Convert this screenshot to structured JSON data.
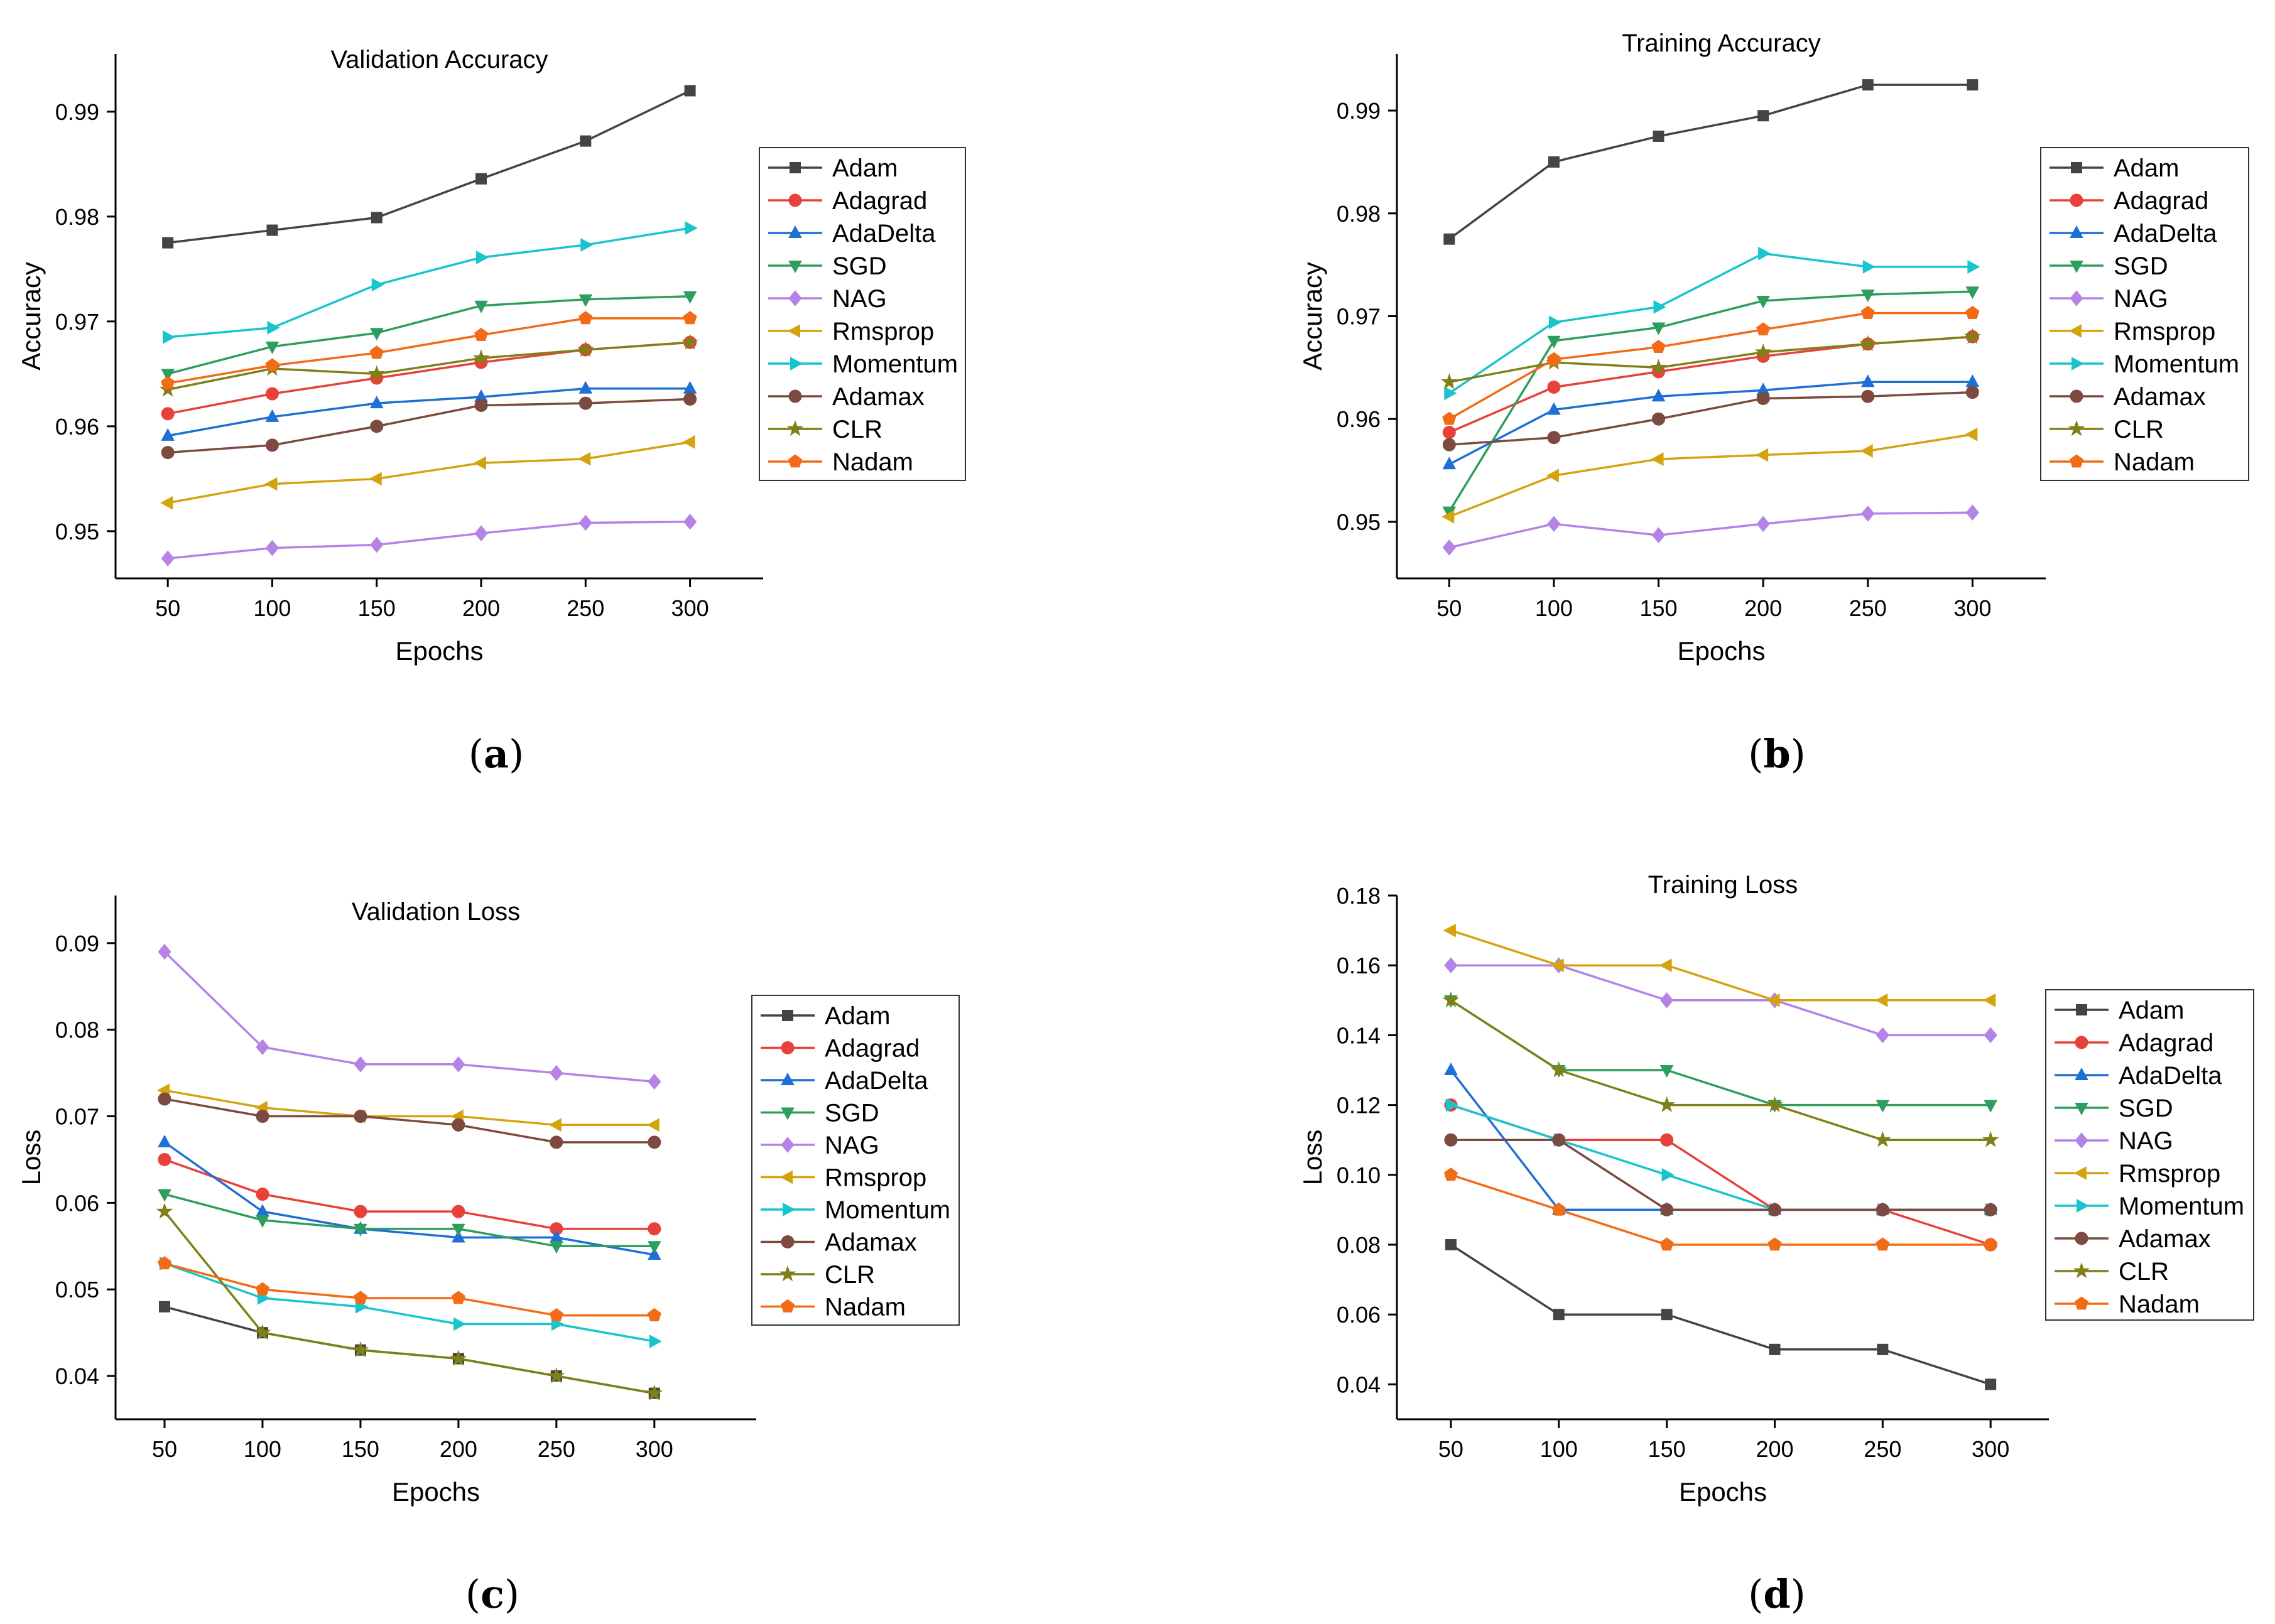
{
  "chart_data": [
    {
      "type": "line",
      "panel_label": "a",
      "title": "Validation Accuracy",
      "xlabel": "Epochs",
      "ylabel": "Accuracy",
      "x": [
        50,
        100,
        150,
        200,
        250,
        300
      ],
      "xticks": [
        "50",
        "100",
        "150",
        "200",
        "250",
        "300"
      ],
      "yticks": [
        "0.95",
        "0.96",
        "0.97",
        "0.98",
        "0.99"
      ],
      "ytick_values": [
        0.95,
        0.96,
        0.97,
        0.98,
        0.99
      ],
      "xlim": [
        25,
        335
      ],
      "ylim": [
        0.9455,
        0.9955
      ],
      "legend_position": "right",
      "series": [
        {
          "name": "Adam",
          "color": "#444444",
          "marker": "square",
          "values": [
            0.9775,
            0.9787,
            0.9799,
            0.9836,
            0.9872,
            0.992
          ]
        },
        {
          "name": "Adagrad",
          "color": "#e8413a",
          "marker": "circle",
          "values": [
            0.9612,
            0.9631,
            0.9646,
            0.9661,
            0.9673,
            0.968
          ]
        },
        {
          "name": "AdaDelta",
          "color": "#1e6fd6",
          "marker": "triangle-up",
          "values": [
            0.9591,
            0.9609,
            0.9622,
            0.9628,
            0.9636,
            0.9636
          ]
        },
        {
          "name": "SGD",
          "color": "#2e9e5e",
          "marker": "triangle-down",
          "values": [
            0.965,
            0.9676,
            0.9689,
            0.9715,
            0.9721,
            0.9724
          ]
        },
        {
          "name": "NAG",
          "color": "#b583e6",
          "marker": "diamond",
          "values": [
            0.9474,
            0.9484,
            0.9487,
            0.9498,
            0.9508,
            0.9509
          ]
        },
        {
          "name": "Rmsprop",
          "color": "#d4a40f",
          "marker": "triangle-left",
          "values": [
            0.9527,
            0.9545,
            0.955,
            0.9565,
            0.9569,
            0.9585
          ]
        },
        {
          "name": "Momentum",
          "color": "#19c4cc",
          "marker": "triangle-right",
          "values": [
            0.9685,
            0.9694,
            0.9735,
            0.9761,
            0.9773,
            0.9789
          ]
        },
        {
          "name": "Adamax",
          "color": "#7c4a3f",
          "marker": "circle",
          "values": [
            0.9575,
            0.9582,
            0.96,
            0.962,
            0.9622,
            0.9626
          ]
        },
        {
          "name": "CLR",
          "color": "#808018",
          "marker": "star",
          "values": [
            0.9635,
            0.9655,
            0.965,
            0.9665,
            0.9673,
            0.968
          ]
        },
        {
          "name": "Nadam",
          "color": "#f26b16",
          "marker": "pentagon",
          "values": [
            0.9641,
            0.9658,
            0.967,
            0.9687,
            0.9703,
            0.9703
          ]
        }
      ]
    },
    {
      "type": "line",
      "panel_label": "b",
      "title": "Training Accuracy",
      "xlabel": "Epochs",
      "ylabel": "Accuracy",
      "x": [
        50,
        100,
        150,
        200,
        250,
        300
      ],
      "xticks": [
        "50",
        "100",
        "150",
        "200",
        "250",
        "300"
      ],
      "yticks": [
        "0.95",
        "0.96",
        "0.97",
        "0.98",
        "0.99"
      ],
      "ytick_values": [
        0.95,
        0.96,
        0.97,
        0.98,
        0.99
      ],
      "xlim": [
        25,
        335
      ],
      "ylim": [
        0.9445,
        0.9955
      ],
      "legend_position": "right",
      "series": [
        {
          "name": "Adam",
          "color": "#444444",
          "marker": "square",
          "values": [
            0.9775,
            0.985,
            0.9875,
            0.9895,
            0.9925,
            0.9925
          ]
        },
        {
          "name": "Adagrad",
          "color": "#e8413a",
          "marker": "circle",
          "values": [
            0.9587,
            0.9631,
            0.9646,
            0.9661,
            0.9673,
            0.968
          ]
        },
        {
          "name": "AdaDelta",
          "color": "#1e6fd6",
          "marker": "triangle-up",
          "values": [
            0.9556,
            0.9609,
            0.9622,
            0.9628,
            0.9636,
            0.9636
          ]
        },
        {
          "name": "SGD",
          "color": "#2e9e5e",
          "marker": "triangle-down",
          "values": [
            0.951,
            0.9676,
            0.9689,
            0.9715,
            0.9721,
            0.9724
          ]
        },
        {
          "name": "NAG",
          "color": "#b583e6",
          "marker": "diamond",
          "values": [
            0.9475,
            0.9498,
            0.9487,
            0.9498,
            0.9508,
            0.9509
          ]
        },
        {
          "name": "Rmsprop",
          "color": "#d4a40f",
          "marker": "triangle-left",
          "values": [
            0.9505,
            0.9545,
            0.9561,
            0.9565,
            0.9569,
            0.9585
          ]
        },
        {
          "name": "Momentum",
          "color": "#19c4cc",
          "marker": "triangle-right",
          "values": [
            0.9625,
            0.9694,
            0.9709,
            0.9761,
            0.9748,
            0.9748
          ]
        },
        {
          "name": "Adamax",
          "color": "#7c4a3f",
          "marker": "circle",
          "values": [
            0.9575,
            0.9582,
            0.96,
            0.962,
            0.9622,
            0.9626
          ]
        },
        {
          "name": "CLR",
          "color": "#808018",
          "marker": "star",
          "values": [
            0.9636,
            0.9655,
            0.965,
            0.9665,
            0.9673,
            0.968
          ]
        },
        {
          "name": "Nadam",
          "color": "#f26b16",
          "marker": "pentagon",
          "values": [
            0.96,
            0.9658,
            0.967,
            0.9687,
            0.9703,
            0.9703
          ]
        }
      ]
    },
    {
      "type": "line",
      "panel_label": "c",
      "title": "Validation Loss",
      "xlabel": "Epochs",
      "ylabel": "Loss",
      "x": [
        50,
        100,
        150,
        200,
        250,
        300
      ],
      "xticks": [
        "50",
        "100",
        "150",
        "200",
        "250",
        "300"
      ],
      "yticks": [
        "0.04",
        "0.05",
        "0.06",
        "0.07",
        "0.08",
        "0.09"
      ],
      "ytick_values": [
        0.04,
        0.05,
        0.06,
        0.07,
        0.08,
        0.09
      ],
      "xlim": [
        25,
        352
      ],
      "ylim": [
        0.035,
        0.0955
      ],
      "legend_position": "right",
      "series": [
        {
          "name": "Adam",
          "color": "#444444",
          "marker": "square",
          "values": [
            0.048,
            0.045,
            0.043,
            0.042,
            0.04,
            0.038
          ]
        },
        {
          "name": "Adagrad",
          "color": "#e8413a",
          "marker": "circle",
          "values": [
            0.065,
            0.061,
            0.059,
            0.059,
            0.057,
            0.057
          ]
        },
        {
          "name": "AdaDelta",
          "color": "#1e6fd6",
          "marker": "triangle-up",
          "values": [
            0.067,
            0.059,
            0.057,
            0.056,
            0.056,
            0.054
          ]
        },
        {
          "name": "SGD",
          "color": "#2e9e5e",
          "marker": "triangle-down",
          "values": [
            0.061,
            0.058,
            0.057,
            0.057,
            0.055,
            0.055
          ]
        },
        {
          "name": "NAG",
          "color": "#b583e6",
          "marker": "diamond",
          "values": [
            0.089,
            0.078,
            0.076,
            0.076,
            0.075,
            0.074
          ]
        },
        {
          "name": "Rmsprop",
          "color": "#d4a40f",
          "marker": "triangle-left",
          "values": [
            0.073,
            0.071,
            0.07,
            0.07,
            0.069,
            0.069
          ]
        },
        {
          "name": "Momentum",
          "color": "#19c4cc",
          "marker": "triangle-right",
          "values": [
            0.053,
            0.049,
            0.048,
            0.046,
            0.046,
            0.044
          ]
        },
        {
          "name": "Adamax",
          "color": "#7c4a3f",
          "marker": "circle",
          "values": [
            0.072,
            0.07,
            0.07,
            0.069,
            0.067,
            0.067
          ]
        },
        {
          "name": "CLR",
          "color": "#808018",
          "marker": "star",
          "values": [
            0.059,
            0.045,
            0.043,
            0.042,
            0.04,
            0.038
          ]
        },
        {
          "name": "Nadam",
          "color": "#f26b16",
          "marker": "pentagon",
          "values": [
            0.053,
            0.05,
            0.049,
            0.049,
            0.047,
            0.047
          ]
        }
      ]
    },
    {
      "type": "line",
      "panel_label": "d",
      "title": "Training Loss",
      "xlabel": "Epochs",
      "ylabel": "Loss",
      "x": [
        50,
        100,
        150,
        200,
        250,
        300
      ],
      "xticks": [
        "50",
        "100",
        "150",
        "200",
        "250",
        "300"
      ],
      "yticks": [
        "0.04",
        "0.06",
        "0.08",
        "0.10",
        "0.12",
        "0.14",
        "0.16",
        "0.18"
      ],
      "ytick_values": [
        0.04,
        0.06,
        0.08,
        0.1,
        0.12,
        0.14,
        0.16,
        0.18
      ],
      "xlim": [
        25,
        327
      ],
      "ylim": [
        0.03,
        0.18
      ],
      "legend_position": "right",
      "series": [
        {
          "name": "Adam",
          "color": "#444444",
          "marker": "square",
          "values": [
            0.08,
            0.06,
            0.06,
            0.05,
            0.05,
            0.04
          ]
        },
        {
          "name": "Adagrad",
          "color": "#e8413a",
          "marker": "circle",
          "values": [
            0.12,
            0.11,
            0.11,
            0.09,
            0.09,
            0.08
          ]
        },
        {
          "name": "AdaDelta",
          "color": "#1e6fd6",
          "marker": "triangle-up",
          "values": [
            0.13,
            0.09,
            0.09,
            0.09,
            0.09,
            0.09
          ]
        },
        {
          "name": "SGD",
          "color": "#2e9e5e",
          "marker": "triangle-down",
          "values": [
            0.15,
            0.13,
            0.13,
            0.12,
            0.12,
            0.12
          ]
        },
        {
          "name": "NAG",
          "color": "#b583e6",
          "marker": "diamond",
          "values": [
            0.16,
            0.16,
            0.15,
            0.15,
            0.14,
            0.14
          ]
        },
        {
          "name": "Rmsprop",
          "color": "#d4a40f",
          "marker": "triangle-left",
          "values": [
            0.17,
            0.16,
            0.16,
            0.15,
            0.15,
            0.15
          ]
        },
        {
          "name": "Momentum",
          "color": "#19c4cc",
          "marker": "triangle-right",
          "values": [
            0.12,
            0.11,
            0.1,
            0.09,
            0.09,
            0.09
          ]
        },
        {
          "name": "Adamax",
          "color": "#7c4a3f",
          "marker": "circle",
          "values": [
            0.11,
            0.11,
            0.09,
            0.09,
            0.09,
            0.09
          ]
        },
        {
          "name": "CLR",
          "color": "#808018",
          "marker": "star",
          "values": [
            0.15,
            0.13,
            0.12,
            0.12,
            0.11,
            0.11
          ]
        },
        {
          "name": "Nadam",
          "color": "#f26b16",
          "marker": "pentagon",
          "values": [
            0.1,
            0.09,
            0.08,
            0.08,
            0.08,
            0.08
          ]
        }
      ]
    }
  ]
}
